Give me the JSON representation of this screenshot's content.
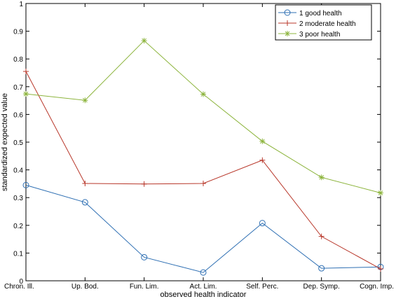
{
  "chart_data": {
    "type": "line",
    "title": "",
    "xlabel": "observed health indicator",
    "ylabel": "standardized expected value",
    "ylim": [
      0,
      1
    ],
    "yticks": [
      "0",
      "0.1",
      "0.2",
      "0.3",
      "0.4",
      "0.5",
      "0.6",
      "0.7",
      "0.8",
      "0.9",
      "1"
    ],
    "grid": false,
    "legend_position": "top-right",
    "categories": [
      "Chron. Ill.",
      "Up. Bod.",
      "Fun. Lim.",
      "Act. Lim.",
      "Self. Perc.",
      "Dep. Symp.",
      "Cogn. Imp."
    ],
    "series": [
      {
        "name": "1 good health",
        "color": "#2e6fb3",
        "marker": "circle",
        "values": [
          0.345,
          0.283,
          0.085,
          0.03,
          0.208,
          0.045,
          0.05
        ]
      },
      {
        "name": "2 moderate health",
        "color": "#b8372a",
        "marker": "plus",
        "values": [
          0.755,
          0.351,
          0.349,
          0.351,
          0.435,
          0.16,
          0.043
        ]
      },
      {
        "name": "3 poor health",
        "color": "#8cb43c",
        "marker": "star",
        "values": [
          0.674,
          0.651,
          0.866,
          0.673,
          0.503,
          0.373,
          0.317
        ]
      }
    ]
  }
}
